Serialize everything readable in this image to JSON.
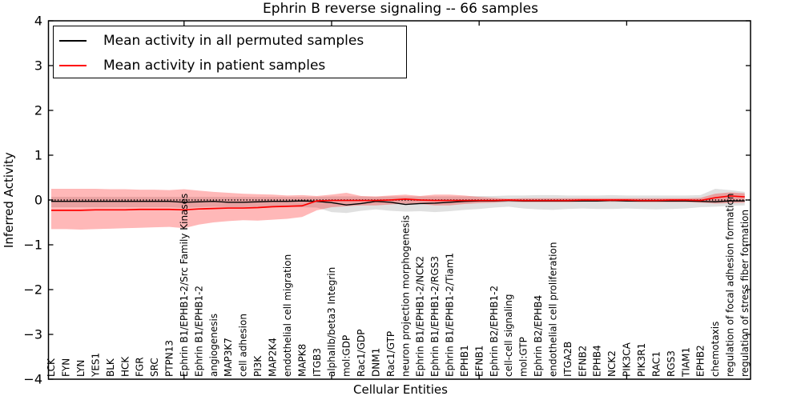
{
  "chart_data": {
    "type": "line",
    "title": "Ephrin B reverse signaling -- 66 samples",
    "xlabel": "Cellular Entities",
    "ylabel": "Inferred Activity",
    "ylim": [
      -4,
      4
    ],
    "yticks": [
      4,
      3,
      2,
      1,
      0,
      -1,
      -2,
      -3,
      -4
    ],
    "xtick_indices": [
      9,
      19,
      29,
      39
    ],
    "grid": false,
    "legend_position": "upper left",
    "zero_line": {
      "y": 0,
      "style": "dotted",
      "color": "#000000"
    },
    "categories": [
      "LCK",
      "FYN",
      "LYN",
      "YES1",
      "BLK",
      "HCK",
      "FGR",
      "SRC",
      "PTPN13",
      "Ephrin B1/EPHB1-2/Src Family Kinases",
      "Ephrin B1/EPHB1-2",
      "angiogenesis",
      "MAP3K7",
      "cell adhesion",
      "PI3K",
      "MAP2K4",
      "endothelial cell migration",
      "MAPK8",
      "ITGB3",
      "alphaIIb/beta3 Integrin",
      "mol:GDP",
      "Rac1/GDP",
      "DNM1",
      "Rac1/GTP",
      "neuron projection morphogenesis",
      "Ephrin B1/EPHB1-2/NCK2",
      "Ephrin B1/EPHB1-2/RGS3",
      "Ephrin B1/EPHB1-2/Tiam1",
      "EPHB1",
      "EFNB1",
      "Ephrin B2/EPHB1-2",
      "cell-cell signaling",
      "mol:GTP",
      "Ephrin B2/EPHB4",
      "endothelial cell proliferation",
      "ITGA2B",
      "EFNB2",
      "EPHB4",
      "NCK2",
      "PIK3CA",
      "PIK3R1",
      "RAC1",
      "RGS3",
      "TIAM1",
      "EPHB2",
      "chemotaxis",
      "regulation of focal adhesion formation",
      "regulation of stress fiber formation"
    ],
    "series": [
      {
        "name": "Mean activity in all permuted samples",
        "color": "#000000",
        "band_opacity": 0.12,
        "values": [
          -0.03,
          -0.03,
          -0.03,
          -0.03,
          -0.03,
          -0.03,
          -0.03,
          -0.03,
          -0.03,
          -0.05,
          -0.04,
          -0.03,
          -0.05,
          -0.05,
          -0.04,
          -0.03,
          -0.03,
          -0.02,
          -0.03,
          -0.06,
          -0.11,
          -0.08,
          -0.03,
          -0.05,
          -0.1,
          -0.08,
          -0.07,
          -0.05,
          -0.03,
          -0.02,
          -0.02,
          -0.01,
          -0.02,
          -0.02,
          -0.02,
          -0.02,
          -0.02,
          -0.02,
          -0.01,
          -0.02,
          -0.02,
          -0.02,
          -0.02,
          -0.02,
          -0.03,
          -0.04,
          -0.02,
          -0.02
        ],
        "band_upper": [
          0.07,
          0.07,
          0.07,
          0.07,
          0.07,
          0.07,
          0.07,
          0.07,
          0.07,
          0.07,
          0.07,
          0.07,
          0.07,
          0.07,
          0.07,
          0.07,
          0.07,
          0.07,
          0.07,
          0.08,
          0.08,
          0.08,
          0.07,
          0.08,
          0.08,
          0.08,
          0.08,
          0.08,
          0.08,
          0.09,
          0.09,
          0.1,
          0.1,
          0.11,
          0.11,
          0.1,
          0.1,
          0.1,
          0.11,
          0.1,
          0.1,
          0.1,
          0.1,
          0.1,
          0.11,
          0.25,
          0.22,
          0.18
        ],
        "band_lower": [
          -0.16,
          -0.16,
          -0.16,
          -0.16,
          -0.16,
          -0.16,
          -0.16,
          -0.16,
          -0.16,
          -0.18,
          -0.16,
          -0.15,
          -0.16,
          -0.16,
          -0.15,
          -0.15,
          -0.15,
          -0.16,
          -0.17,
          -0.27,
          -0.29,
          -0.24,
          -0.21,
          -0.24,
          -0.26,
          -0.25,
          -0.27,
          -0.25,
          -0.22,
          -0.2,
          -0.17,
          -0.15,
          -0.19,
          -0.21,
          -0.22,
          -0.2,
          -0.19,
          -0.2,
          -0.2,
          -0.19,
          -0.2,
          -0.21,
          -0.2,
          -0.19,
          -0.16,
          -0.15,
          -0.13,
          -0.12
        ]
      },
      {
        "name": "Mean activity in patient samples",
        "color": "#ff0000",
        "band_opacity": 0.28,
        "values": [
          -0.23,
          -0.23,
          -0.23,
          -0.22,
          -0.22,
          -0.22,
          -0.21,
          -0.21,
          -0.21,
          -0.22,
          -0.2,
          -0.19,
          -0.18,
          -0.18,
          -0.17,
          -0.15,
          -0.14,
          -0.13,
          -0.02,
          -0.01,
          -0.01,
          -0.01,
          -0.01,
          0.0,
          0.02,
          0.0,
          -0.01,
          -0.01,
          -0.01,
          -0.01,
          -0.01,
          0.0,
          -0.01,
          -0.01,
          -0.01,
          -0.01,
          0.0,
          0.0,
          0.0,
          0.0,
          -0.01,
          -0.01,
          0.0,
          0.0,
          -0.01,
          0.05,
          0.09,
          0.07
        ],
        "band_upper": [
          0.25,
          0.25,
          0.25,
          0.25,
          0.24,
          0.24,
          0.23,
          0.23,
          0.22,
          0.24,
          0.21,
          0.18,
          0.16,
          0.14,
          0.13,
          0.12,
          0.1,
          0.11,
          0.09,
          0.12,
          0.16,
          0.09,
          0.08,
          0.1,
          0.12,
          0.09,
          0.12,
          0.12,
          0.1,
          0.07,
          0.05,
          0.03,
          0.04,
          0.04,
          0.04,
          0.04,
          0.04,
          0.04,
          0.04,
          0.04,
          0.04,
          0.04,
          0.04,
          0.04,
          0.05,
          0.14,
          0.17,
          0.15
        ],
        "band_lower": [
          -0.65,
          -0.65,
          -0.66,
          -0.65,
          -0.64,
          -0.63,
          -0.62,
          -0.61,
          -0.6,
          -0.63,
          -0.55,
          -0.5,
          -0.47,
          -0.45,
          -0.46,
          -0.44,
          -0.42,
          -0.38,
          -0.23,
          -0.16,
          -0.14,
          -0.12,
          -0.12,
          -0.1,
          -0.08,
          -0.09,
          -0.12,
          -0.12,
          -0.09,
          -0.07,
          -0.06,
          -0.04,
          -0.05,
          -0.05,
          -0.05,
          -0.05,
          -0.04,
          -0.04,
          -0.04,
          -0.04,
          -0.05,
          -0.05,
          -0.05,
          -0.05,
          -0.06,
          -0.08,
          -0.07,
          -0.06
        ]
      }
    ]
  }
}
